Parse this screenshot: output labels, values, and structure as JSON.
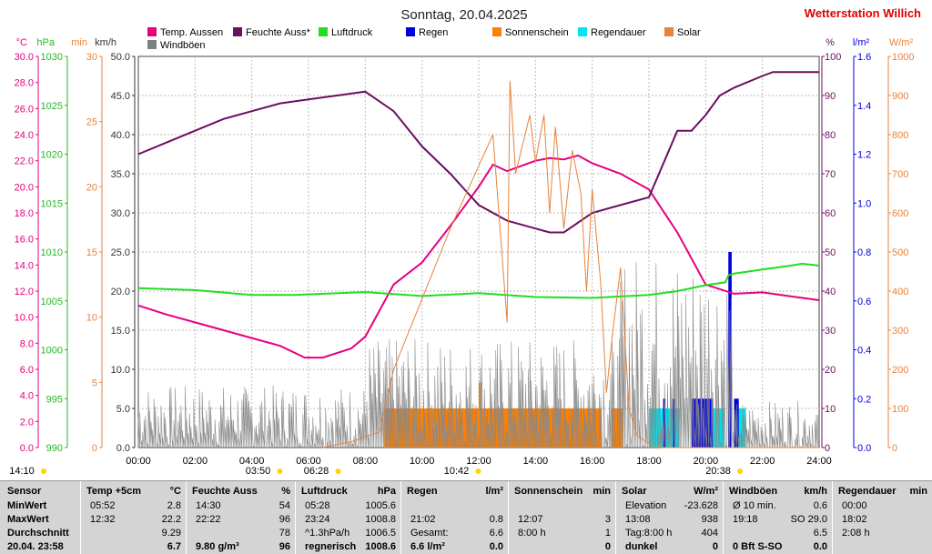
{
  "title": "Sonntag, 20.04.2025",
  "station": "Wetterstation Willich",
  "units_left": [
    "°C",
    "hPa",
    "min",
    "km/h"
  ],
  "units_right": [
    "%",
    "l/m²",
    "W/m²"
  ],
  "legend": [
    {
      "label": "Temp. Aussen",
      "color": "#e6007e"
    },
    {
      "label": "Feuchte Auss*",
      "color": "#6b0f5f"
    },
    {
      "label": "Luftdruck",
      "color": "#22dd22"
    },
    {
      "label": "Regen",
      "color": "#0000dd"
    },
    {
      "label": "Sonnenschein",
      "color": "#ff7f00"
    },
    {
      "label": "Regendauer",
      "color": "#00e5ee"
    },
    {
      "label": "Solar",
      "color": "#e8823a"
    },
    {
      "label": "Windböen",
      "color": "#808080"
    }
  ],
  "chart_data": {
    "type": "line",
    "title": "Sonntag, 20.04.2025",
    "x_ticks": [
      "00:00",
      "02:00",
      "04:00",
      "06:00",
      "08:00",
      "10:00",
      "12:00",
      "14:00",
      "16:00",
      "18:00",
      "20:00",
      "22:00",
      "24:00"
    ],
    "axes": {
      "temp_c": {
        "ticks": [
          "30.0",
          "28.0",
          "26.0",
          "24.0",
          "22.0",
          "20.0",
          "18.0",
          "16.0",
          "14.0",
          "12.0",
          "10.0",
          "8.0",
          "6.0",
          "4.0",
          "2.0",
          "0.0"
        ],
        "color": "#e6007e"
      },
      "pressure_hpa": {
        "ticks": [
          "1030",
          "1025",
          "1020",
          "1015",
          "1010",
          "1005",
          "1000",
          "995",
          "990"
        ],
        "color": "#22bb22"
      },
      "minutes": {
        "ticks": [
          "30",
          "25",
          "20",
          "15",
          "10",
          "5",
          "0"
        ],
        "color": "#e8823a"
      },
      "wind_kmh": {
        "ticks": [
          "50.0",
          "45.0",
          "40.0",
          "35.0",
          "30.0",
          "25.0",
          "20.0",
          "15.0",
          "10.0",
          "5.0",
          "0.0"
        ],
        "color": "#333333"
      },
      "humidity_pct": {
        "ticks": [
          "100",
          "90",
          "80",
          "70",
          "60",
          "50",
          "40",
          "30",
          "20",
          "10",
          "0"
        ],
        "color": "#6b0f5f"
      },
      "rain_lm2": {
        "ticks": [
          "1.6",
          "1.4",
          "1.2",
          "1.0",
          "0.8",
          "0.6",
          "0.4",
          "0.2",
          "0.0"
        ],
        "color": "#0000dd"
      },
      "solar_wm2": {
        "ticks": [
          "1000",
          "900",
          "800",
          "700",
          "600",
          "500",
          "400",
          "300",
          "200",
          "100",
          "0"
        ],
        "color": "#e8823a"
      }
    },
    "series": [
      {
        "name": "Temp. Aussen",
        "unit": "°C",
        "range": [
          0,
          30
        ],
        "color": "#e6007e",
        "points": [
          [
            0,
            10.9
          ],
          [
            1,
            10.2
          ],
          [
            2,
            9.6
          ],
          [
            3,
            9.0
          ],
          [
            4,
            8.4
          ],
          [
            5,
            7.8
          ],
          [
            5.87,
            6.9
          ],
          [
            6.5,
            6.9
          ],
          [
            7.5,
            7.6
          ],
          [
            8,
            8.5
          ],
          [
            9,
            12.5
          ],
          [
            10,
            14.2
          ],
          [
            11,
            17.0
          ],
          [
            12,
            20.0
          ],
          [
            12.5,
            21.7
          ],
          [
            13,
            21.2
          ],
          [
            14,
            22.0
          ],
          [
            14.5,
            22.2
          ],
          [
            15,
            22.1
          ],
          [
            15.5,
            22.4
          ],
          [
            16,
            21.8
          ],
          [
            17,
            21.0
          ],
          [
            18,
            19.8
          ],
          [
            19,
            16.5
          ],
          [
            19.5,
            14.5
          ],
          [
            20,
            12.5
          ],
          [
            21,
            11.8
          ],
          [
            22,
            11.9
          ],
          [
            23,
            11.6
          ],
          [
            24,
            11.3
          ]
        ]
      },
      {
        "name": "Feuchte Auss*",
        "unit": "%",
        "range": [
          0,
          100
        ],
        "color": "#6b0f5f",
        "points": [
          [
            0,
            75
          ],
          [
            1,
            78
          ],
          [
            2,
            81
          ],
          [
            3,
            84
          ],
          [
            4,
            86
          ],
          [
            5,
            88
          ],
          [
            6,
            89
          ],
          [
            7,
            90
          ],
          [
            8,
            91
          ],
          [
            9,
            86
          ],
          [
            10,
            77
          ],
          [
            11,
            70
          ],
          [
            12,
            62
          ],
          [
            13,
            58
          ],
          [
            14,
            56
          ],
          [
            14.5,
            55
          ],
          [
            15,
            55
          ],
          [
            16,
            60
          ],
          [
            17,
            62
          ],
          [
            18,
            64
          ],
          [
            19,
            81
          ],
          [
            19.5,
            81
          ],
          [
            20,
            85
          ],
          [
            20.5,
            90
          ],
          [
            21,
            92
          ],
          [
            22,
            95
          ],
          [
            22.37,
            96
          ],
          [
            23,
            96
          ],
          [
            24,
            96
          ]
        ]
      },
      {
        "name": "Luftdruck",
        "unit": "hPa",
        "range": [
          990,
          1030
        ],
        "color": "#22dd22",
        "points": [
          [
            0,
            1006.3
          ],
          [
            2,
            1006.1
          ],
          [
            4,
            1005.6
          ],
          [
            5.47,
            1005.6
          ],
          [
            8,
            1005.9
          ],
          [
            10,
            1005.5
          ],
          [
            12,
            1005.8
          ],
          [
            14,
            1005.4
          ],
          [
            16,
            1005.3
          ],
          [
            18,
            1005.6
          ],
          [
            19,
            1006.0
          ],
          [
            20,
            1006.6
          ],
          [
            20.7,
            1006.9
          ],
          [
            20.8,
            1007.6
          ],
          [
            21,
            1007.8
          ],
          [
            22,
            1008.2
          ],
          [
            23,
            1008.6
          ],
          [
            23.4,
            1008.8
          ],
          [
            24,
            1008.6
          ]
        ]
      },
      {
        "name": "Solar",
        "unit": "W/m²",
        "range": [
          0,
          1000
        ],
        "color": "#e8823a",
        "points": [
          [
            6.5,
            0
          ],
          [
            7.5,
            15
          ],
          [
            8.5,
            40
          ],
          [
            9,
            200
          ],
          [
            10,
            380
          ],
          [
            11,
            560
          ],
          [
            12,
            720
          ],
          [
            12.5,
            800
          ],
          [
            13.0,
            320
          ],
          [
            13.1,
            938
          ],
          [
            13.3,
            700
          ],
          [
            13.8,
            850
          ],
          [
            14.0,
            730
          ],
          [
            14.3,
            850
          ],
          [
            14.5,
            600
          ],
          [
            14.7,
            820
          ],
          [
            15.0,
            560
          ],
          [
            15.3,
            760
          ],
          [
            15.6,
            650
          ],
          [
            15.8,
            400
          ],
          [
            16.0,
            660
          ],
          [
            16.3,
            420
          ],
          [
            16.5,
            140
          ],
          [
            16.7,
            280
          ],
          [
            17.0,
            460
          ],
          [
            17.3,
            100
          ],
          [
            17.6,
            30
          ],
          [
            18.0,
            10
          ],
          [
            18.5,
            0
          ],
          [
            24,
            0
          ]
        ]
      },
      {
        "name": "Windböen",
        "unit": "km/h",
        "range": [
          0,
          50
        ],
        "color": "#808080",
        "max": 29.0,
        "max_time": "19:18",
        "avg_10min": 0.6
      }
    ],
    "bars": [
      {
        "name": "Sonnenschein",
        "unit": "min",
        "color": "#ff7f00",
        "segments": [
          [
            "08:40",
            "16:20",
            3
          ],
          [
            "12:00",
            "12:05",
            5
          ],
          [
            "16:40",
            "17:05",
            3
          ]
        ]
      },
      {
        "name": "Regendauer",
        "unit": "min",
        "color": "#00e5ee",
        "segments": [
          [
            "18:00",
            "19:05",
            3
          ],
          [
            "20:00",
            "20:40",
            3
          ],
          [
            "21:00",
            "21:25",
            3
          ]
        ]
      },
      {
        "name": "Regen",
        "unit": "l/m²",
        "color": "#0000dd",
        "segments": [
          [
            "18:30",
            "18:35",
            0.2
          ],
          [
            "18:50",
            "18:55",
            0.2
          ],
          [
            "19:30",
            "20:15",
            0.2
          ],
          [
            "20:48",
            "20:55",
            0.8
          ],
          [
            "21:00",
            "21:10",
            0.2
          ]
        ]
      }
    ],
    "markers": {
      "sunrise": "06:28",
      "sunset": "20:38",
      "moonrise": "03:50",
      "moon_time": "10:42",
      "left_mark": "14:10"
    }
  },
  "table": {
    "sensor": {
      "header": "Sensor",
      "rows": [
        "MinWert",
        "MaxWert",
        "Durchschnitt",
        "20.04. 23:58"
      ]
    },
    "temp": {
      "header": "Temp +5cm",
      "unit": "°C",
      "rows": [
        [
          "05:52",
          "2.8"
        ],
        [
          "12:32",
          "22.2"
        ],
        [
          "",
          "9.29"
        ],
        [
          "",
          "6.7"
        ]
      ]
    },
    "humidity": {
      "header": "Feuchte Auss",
      "unit": "%",
      "rows": [
        [
          "14:30",
          "54"
        ],
        [
          "22:22",
          "96"
        ],
        [
          "",
          "78"
        ],
        [
          "9.80 g/m³",
          "96"
        ]
      ]
    },
    "pressure": {
      "header": "Luftdruck",
      "unit": "hPa",
      "rows": [
        [
          "05:28",
          "1005.6"
        ],
        [
          "23:24",
          "1008.8"
        ],
        [
          "^1.3hPa/h",
          "1006.5"
        ],
        [
          "regnerisch",
          "1008.6"
        ]
      ]
    },
    "rain": {
      "header": "Regen",
      "unit": "l/m²",
      "rows": [
        [
          "",
          ""
        ],
        [
          "21:02",
          "0.8"
        ],
        [
          "Gesamt:",
          "6.6"
        ],
        [
          "6.6 l/m²",
          "0.0"
        ]
      ]
    },
    "sunshine": {
      "header": "Sonnenschein",
      "unit": "min",
      "rows": [
        [
          "",
          ""
        ],
        [
          "12:07",
          "3"
        ],
        [
          "8:00 h",
          "1"
        ],
        [
          "",
          "0"
        ]
      ]
    },
    "solar": {
      "header": "Solar",
      "unit": "W/m²",
      "rows": [
        [
          "Elevation",
          "-23.628"
        ],
        [
          "13:08",
          "938"
        ],
        [
          "Tag:8:00 h",
          "404"
        ],
        [
          "dunkel",
          "0"
        ]
      ]
    },
    "wind": {
      "header": "Windböen",
      "unit": "km/h",
      "rows": [
        [
          "Ø 10 min.",
          "0.6"
        ],
        [
          "19:18",
          "SO 29.0"
        ],
        [
          "",
          "6.5"
        ],
        [
          "0 Bft S-SO",
          "0.0"
        ]
      ]
    },
    "raindur": {
      "header": "Regendauer",
      "unit": "min",
      "rows": [
        [
          "00:00",
          ""
        ],
        [
          "18:02",
          ""
        ],
        [
          "2:08 h",
          ""
        ],
        [
          "",
          ""
        ]
      ]
    }
  }
}
